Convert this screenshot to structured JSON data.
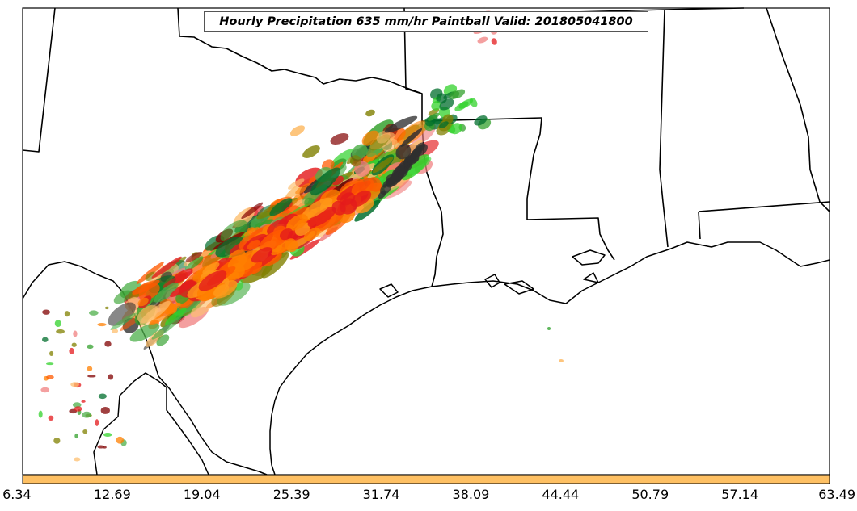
{
  "title": "Hourly Precipitation 635 mm/hr Paintball Valid: 201805041800",
  "colorbar": {
    "fill_color": "#fec063",
    "tick_labels": [
      "6.34",
      "12.69",
      "19.04",
      "25.39",
      "31.74",
      "38.09",
      "44.44",
      "50.79",
      "57.14",
      "63.49"
    ]
  },
  "colors": {
    "land_outline": "#000000",
    "paintball_members": [
      "#e41a1c",
      "#ff7f00",
      "#fdbf6f",
      "#33a02c",
      "#006d2c",
      "#800000",
      "#808000",
      "#4daf4a",
      "#31d22b",
      "#303030",
      "#ff5a00",
      "#f08080"
    ]
  }
}
